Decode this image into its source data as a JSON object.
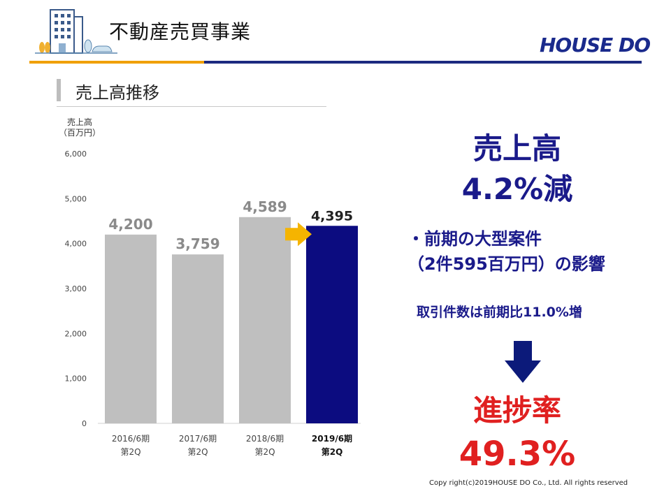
{
  "header": {
    "title": "不動産売買事業",
    "logo": "HOUSE DO"
  },
  "section": {
    "title": "売上高推移"
  },
  "chart_data": {
    "type": "bar",
    "ylabel_line1": "売上高",
    "ylabel_line2": "（百万円）",
    "ylim": [
      0,
      6000
    ],
    "yticks": [
      "0",
      "1,000",
      "2,000",
      "3,000",
      "4,000",
      "5,000",
      "6,000"
    ],
    "categories": [
      {
        "line1": "2016/6期",
        "line2": "第2Q"
      },
      {
        "line1": "2017/6期",
        "line2": "第2Q"
      },
      {
        "line1": "2018/6期",
        "line2": "第2Q"
      },
      {
        "line1": "2019/6期",
        "line2": "第2Q"
      }
    ],
    "values": [
      4200,
      3759,
      4589,
      4395
    ],
    "value_labels": [
      "4,200",
      "3,759",
      "4,589",
      "4,395"
    ],
    "colors": [
      "#bfbfbf",
      "#bfbfbf",
      "#bfbfbf",
      "#0c0c80"
    ],
    "highlight_index": 3,
    "arrow_color": "#f5b400"
  },
  "summary": {
    "headline1": "売上高",
    "headline2": "4.2%減",
    "note1": "・前期の大型案件",
    "note2": "（2件595百万円）の影響",
    "note3": "取引件数は前期比11.0%増",
    "progress_label": "進捗率",
    "progress_value": "49.3%"
  },
  "footer": {
    "copyright": "Copy right(c)2019HOUSE DO Co., Ltd. All rights reserved"
  }
}
